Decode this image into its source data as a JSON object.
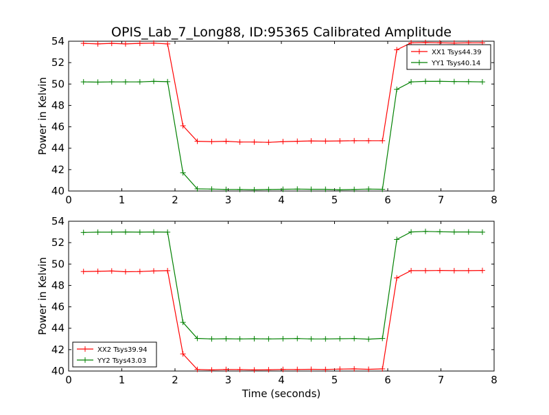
{
  "title": "OPIS_Lab_7_Long88, ID:95365 Calibrated Amplitude",
  "colors": {
    "red": "#ff0000",
    "green": "#008000",
    "axis": "#000000"
  },
  "chart_data": [
    {
      "type": "line",
      "xlabel": "",
      "ylabel": "Power in Kelvin",
      "xlim": [
        0,
        8
      ],
      "ylim": [
        40,
        54
      ],
      "xticks": [
        "0",
        "1",
        "2",
        "3",
        "4",
        "5",
        "6",
        "7",
        "8"
      ],
      "yticks": [
        "40",
        "42",
        "44",
        "46",
        "48",
        "50",
        "52",
        "54"
      ],
      "grid": false,
      "legend_position": "top-right",
      "x": [
        0.28,
        0.55,
        0.81,
        1.07,
        1.34,
        1.6,
        1.86,
        2.15,
        2.42,
        2.69,
        2.96,
        3.22,
        3.49,
        3.76,
        4.03,
        4.3,
        4.56,
        4.83,
        5.1,
        5.37,
        5.64,
        5.9,
        6.17,
        6.44,
        6.71,
        6.98,
        7.25,
        7.52,
        7.78
      ],
      "series": [
        {
          "name": "XX1 Tsys44.39",
          "color": "#ff0000",
          "values": [
            53.8,
            53.75,
            53.8,
            53.75,
            53.8,
            53.82,
            53.75,
            46.1,
            44.65,
            44.62,
            44.65,
            44.58,
            44.58,
            44.55,
            44.62,
            44.65,
            44.68,
            44.66,
            44.68,
            44.7,
            44.7,
            44.7,
            53.2,
            53.85,
            53.88,
            53.85,
            53.83,
            53.85,
            53.85
          ]
        },
        {
          "name": "YY1 Tsys40.14",
          "color": "#008000",
          "values": [
            50.2,
            50.18,
            50.2,
            50.2,
            50.2,
            50.25,
            50.22,
            41.7,
            40.2,
            40.18,
            40.15,
            40.15,
            40.12,
            40.15,
            40.16,
            40.18,
            40.16,
            40.16,
            40.12,
            40.15,
            40.18,
            40.16,
            49.5,
            50.2,
            50.25,
            50.25,
            50.23,
            50.22,
            50.2
          ]
        }
      ]
    },
    {
      "type": "line",
      "xlabel": "Time (seconds)",
      "ylabel": "Power in Kelvin",
      "xlim": [
        0,
        8
      ],
      "ylim": [
        40,
        54
      ],
      "xticks": [
        "0",
        "1",
        "2",
        "3",
        "4",
        "5",
        "6",
        "7",
        "8"
      ],
      "yticks": [
        "40",
        "42",
        "44",
        "46",
        "48",
        "50",
        "52",
        "54"
      ],
      "grid": false,
      "legend_position": "bottom-left",
      "x": [
        0.28,
        0.55,
        0.81,
        1.07,
        1.34,
        1.6,
        1.86,
        2.15,
        2.42,
        2.69,
        2.96,
        3.22,
        3.49,
        3.76,
        4.03,
        4.3,
        4.56,
        4.83,
        5.1,
        5.37,
        5.64,
        5.9,
        6.17,
        6.44,
        6.71,
        6.98,
        7.25,
        7.52,
        7.78
      ],
      "series": [
        {
          "name": "XX2 Tsys39.94",
          "color": "#ff0000",
          "values": [
            49.3,
            49.32,
            49.35,
            49.28,
            49.3,
            49.35,
            49.38,
            41.6,
            40.15,
            40.1,
            40.15,
            40.14,
            40.1,
            40.12,
            40.15,
            40.15,
            40.16,
            40.15,
            40.18,
            40.2,
            40.16,
            40.2,
            48.7,
            49.38,
            49.38,
            49.4,
            49.38,
            49.38,
            49.4
          ]
        },
        {
          "name": "YY2 Tsys43.03",
          "color": "#008000",
          "values": [
            52.95,
            52.98,
            52.98,
            53.0,
            52.98,
            53.0,
            52.98,
            44.55,
            43.05,
            43.0,
            43.02,
            43.0,
            43.02,
            43.0,
            43.02,
            43.04,
            43.0,
            43.0,
            43.02,
            43.04,
            42.98,
            43.05,
            52.3,
            53.0,
            53.05,
            53.02,
            53.0,
            53.0,
            52.98
          ]
        }
      ]
    }
  ]
}
